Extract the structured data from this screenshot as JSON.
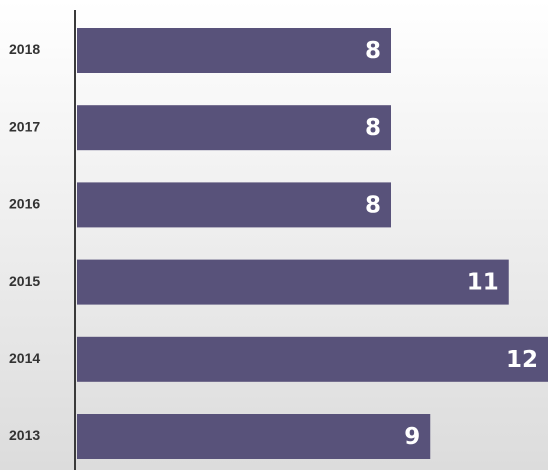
{
  "chart_data": {
    "type": "bar",
    "orientation": "horizontal",
    "categories": [
      "2018",
      "2017",
      "2016",
      "2015",
      "2014",
      "2013"
    ],
    "values": [
      8,
      8,
      8,
      11,
      12,
      9
    ],
    "color": "#58527a"
  }
}
